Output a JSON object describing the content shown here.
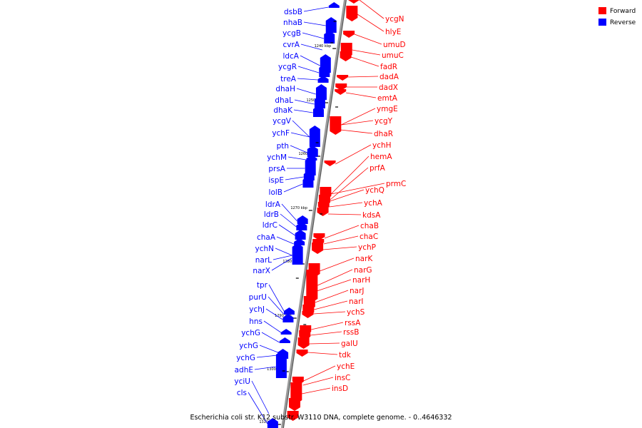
{
  "legend": {
    "forward_label": "Forward",
    "reverse_label": "Reverse",
    "forward_color": "#ff0000",
    "reverse_color": "#0000ff"
  },
  "caption": "Escherichia coli str. K12 substr. W3110 DNA, complete genome. - 0..4646332",
  "tick_labels": [
    "1240 kbp",
    "1250 kbp",
    "1260 kbp",
    "1270 kbp",
    "1280 kbp",
    "1290 kbp",
    "1300 kbp",
    "1310 kbp"
  ],
  "reverse_genes": [
    "dsbB",
    "nhaB",
    "ycgB",
    "cvrA",
    "ldcA",
    "ycgR",
    "treA",
    "dhaH",
    "dhaL",
    "dhaK",
    "ycgV",
    "ychF",
    "pth",
    "ychM",
    "prsA",
    "ispE",
    "lolB",
    "ldrA",
    "ldrB",
    "ldrC",
    "chaA",
    "ychN",
    "narL",
    "narX",
    "tpr",
    "purU",
    "ychJ",
    "hns",
    "ychG",
    "ychG",
    "ychG",
    "adhE",
    "yciU",
    "cls"
  ],
  "forward_genes": [
    "ycgN",
    "hlyE",
    "umuD",
    "umuC",
    "fadR",
    "dadA",
    "dadX",
    "emtA",
    "ymgE",
    "ycgY",
    "dhaR",
    "ychH",
    "hemA",
    "prfA",
    "prmC",
    "ychQ",
    "ychA",
    "kdsA",
    "chaB",
    "chaC",
    "ychP",
    "narK",
    "narG",
    "narH",
    "narJ",
    "narI",
    "ychS",
    "rssA",
    "rssB",
    "galU",
    "tdk",
    "ychE",
    "insC",
    "insD"
  ]
}
